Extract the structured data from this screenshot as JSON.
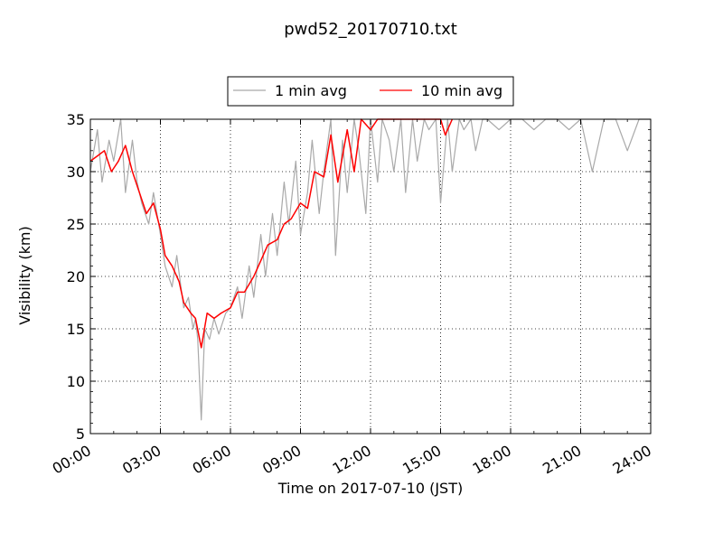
{
  "chart_data": {
    "type": "line",
    "title": "pwd52_20170710.txt",
    "xlabel": "Time on 2017-07-10 (JST)",
    "ylabel": "Visibility (km)",
    "xlim": [
      0,
      24
    ],
    "ylim": [
      5,
      35
    ],
    "x_tick_labels": [
      "00:00",
      "03:00",
      "06:00",
      "09:00",
      "12:00",
      "15:00",
      "18:00",
      "21:00",
      "24:00"
    ],
    "y_tick_labels": [
      "5",
      "10",
      "15",
      "20",
      "25",
      "30",
      "35"
    ],
    "grid": true,
    "legend_placement": "top-center, above plot",
    "series": [
      {
        "name": "1 min avg",
        "color": "#a9a9a9",
        "x_hours": [
          0.0,
          0.3,
          0.5,
          0.8,
          1.0,
          1.3,
          1.5,
          1.8,
          2.0,
          2.2,
          2.5,
          2.7,
          3.0,
          3.2,
          3.5,
          3.7,
          4.0,
          4.2,
          4.4,
          4.5,
          4.6,
          4.75,
          4.9,
          5.1,
          5.3,
          5.5,
          5.8,
          6.0,
          6.3,
          6.5,
          6.8,
          7.0,
          7.3,
          7.5,
          7.8,
          8.0,
          8.3,
          8.5,
          8.8,
          9.0,
          9.3,
          9.5,
          9.8,
          10.0,
          10.3,
          10.5,
          10.8,
          11.0,
          11.3,
          11.5,
          11.8,
          12.0,
          12.3,
          12.5,
          12.8,
          13.0,
          13.3,
          13.5,
          13.8,
          14.0,
          14.3,
          14.5,
          14.8,
          15.0,
          15.3,
          15.5,
          15.8,
          16.0,
          16.3,
          16.5,
          16.8,
          17.0,
          17.5,
          18.0,
          18.5,
          19.0,
          19.5,
          20.0,
          20.5,
          21.0,
          21.5,
          22.0,
          22.5,
          23.0,
          23.5,
          24.0
        ],
        "values": [
          30,
          34,
          29,
          33,
          31,
          35,
          28,
          33,
          29,
          27,
          25,
          28,
          24,
          21,
          19,
          22,
          17,
          18,
          15,
          16,
          14,
          6.3,
          15,
          14,
          16,
          14.5,
          16.5,
          17,
          19,
          16,
          21,
          18,
          24,
          20,
          26,
          22,
          29,
          25,
          31,
          24,
          28,
          33,
          26,
          30,
          35,
          22,
          33,
          28,
          35,
          32,
          26,
          35,
          29,
          35,
          33,
          30,
          35,
          28,
          35,
          31,
          35,
          34,
          35,
          27,
          35,
          30,
          35,
          34,
          35,
          32,
          35,
          35,
          34,
          35,
          35,
          34,
          35,
          35,
          34,
          35,
          30,
          35,
          35,
          32,
          35,
          35
        ]
      },
      {
        "name": "10 min avg",
        "color": "#ff0000",
        "x_hours": [
          0.0,
          0.3,
          0.6,
          0.9,
          1.2,
          1.5,
          1.8,
          2.1,
          2.4,
          2.7,
          3.0,
          3.2,
          3.5,
          3.8,
          4.0,
          4.3,
          4.5,
          4.75,
          5.0,
          5.3,
          5.6,
          6.0,
          6.3,
          6.6,
          7.0,
          7.3,
          7.6,
          8.0,
          8.3,
          8.6,
          9.0,
          9.3,
          9.6,
          10.0,
          10.3,
          10.6,
          11.0,
          11.3,
          11.6,
          12.0,
          12.3,
          12.6,
          13.0,
          13.5,
          14.0,
          14.5,
          15.0,
          15.2,
          15.5
        ],
        "values": [
          31,
          31.5,
          32,
          30,
          31,
          32.5,
          30,
          28,
          26,
          27,
          24.5,
          22,
          21,
          19.5,
          17.5,
          16.5,
          16,
          13.2,
          16.5,
          16,
          16.5,
          17,
          18.5,
          18.5,
          20,
          21.5,
          23,
          23.5,
          25,
          25.5,
          27,
          26.5,
          30,
          29.5,
          33.5,
          29,
          34,
          30,
          35,
          34,
          35,
          35,
          35,
          35,
          35,
          35,
          35,
          33.5,
          35
        ]
      }
    ]
  }
}
